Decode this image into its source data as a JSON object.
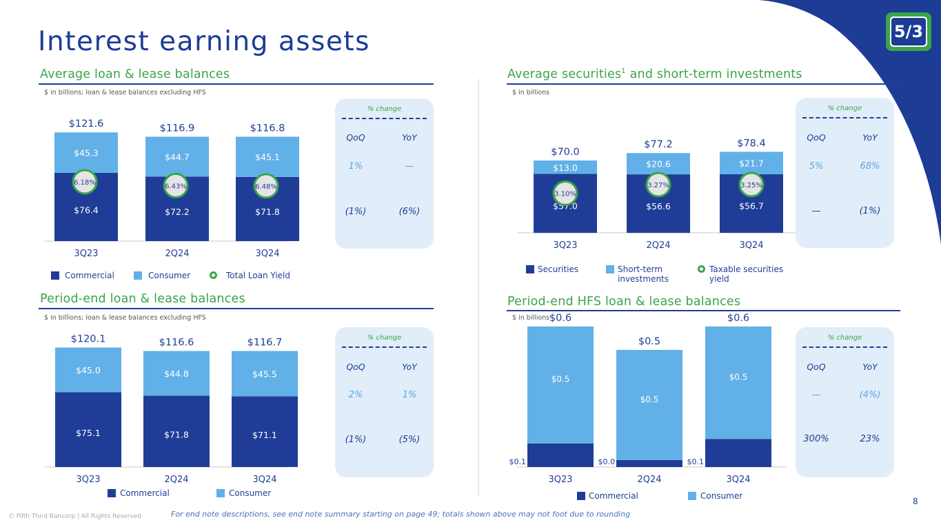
{
  "page": {
    "title": "Interest earning assets",
    "page_number": "8",
    "footer_left": "© Fifth Third Bancorp | All Rights Reserved",
    "footer_note": "For end note descriptions, see end note summary starting on page 49; totals shown above may not foot due to rounding",
    "logo_text": "5/3",
    "colors": {
      "dark_blue": "#1f3d97",
      "light_blue": "#62b0e8",
      "green": "#3aa54a",
      "panel": "#e1edf8"
    }
  },
  "legends": {
    "commercial": "Commercial",
    "consumer": "Consumer",
    "total_loan_yield": "Total Loan Yield",
    "securities": "Securities",
    "short_term": "Short-term investments",
    "taxable_yield": "Taxable securities yield"
  },
  "sections": {
    "avg_loans": {
      "title": "Average loan & lease balances",
      "subnote": "$ in billions; loan & lease balances excluding HFS",
      "change": {
        "header": "% change",
        "qoq_label": "QoQ",
        "yoy_label": "YoY",
        "row1": {
          "qoq": "1%",
          "yoy": "—"
        },
        "row2": {
          "qoq": "(1%)",
          "yoy": "(6%)"
        }
      }
    },
    "avg_securities": {
      "title": "Average securities",
      "title_sup": "1",
      "title_rest": " and short-term investments",
      "subnote": "$ in billions",
      "change": {
        "header": "% change",
        "qoq_label": "QoQ",
        "yoy_label": "YoY",
        "row1": {
          "qoq": "5%",
          "yoy": "68%"
        },
        "row2": {
          "qoq": "—",
          "yoy": "(1%)"
        }
      }
    },
    "pe_loans": {
      "title": "Period-end loan & lease balances",
      "subnote": "$ in billions; loan & lease balances excluding HFS",
      "change": {
        "header": "% change",
        "qoq_label": "QoQ",
        "yoy_label": "YoY",
        "row1": {
          "qoq": "2%",
          "yoy": "1%"
        },
        "row2": {
          "qoq": "(1%)",
          "yoy": "(5%)"
        }
      }
    },
    "pe_hfs": {
      "title": "Period-end HFS loan & lease balances",
      "subnote": "$ in billions",
      "change": {
        "header": "% change",
        "qoq_label": "QoQ",
        "yoy_label": "YoY",
        "row1": {
          "qoq": "—",
          "yoy": "(4%)"
        },
        "row2": {
          "qoq": "300%",
          "yoy": "23%"
        }
      }
    }
  },
  "chart_data": [
    {
      "id": "avg_loans",
      "type": "bar",
      "stacked": true,
      "title": "Average loan & lease balances",
      "categories": [
        "3Q23",
        "2Q24",
        "3Q24"
      ],
      "series": [
        {
          "name": "Commercial",
          "values": [
            76.4,
            72.2,
            71.8
          ],
          "labels": [
            "$76.4",
            "$72.2",
            "$71.8"
          ]
        },
        {
          "name": "Consumer",
          "values": [
            45.3,
            44.7,
            45.1
          ],
          "labels": [
            "$45.3",
            "$44.7",
            "$45.1"
          ]
        }
      ],
      "totals": [
        "$121.6",
        "$116.9",
        "$116.8"
      ],
      "yield_series": {
        "name": "Total Loan Yield",
        "values": [
          "6.18%",
          "6.43%",
          "6.48%"
        ]
      },
      "ylim": [
        0,
        135
      ]
    },
    {
      "id": "avg_securities",
      "type": "bar",
      "stacked": true,
      "title": "Average securities and short-term investments",
      "categories": [
        "3Q23",
        "2Q24",
        "3Q24"
      ],
      "series": [
        {
          "name": "Securities",
          "values": [
            57.0,
            56.6,
            56.7
          ],
          "labels": [
            "$57.0",
            "$56.6",
            "$56.7"
          ]
        },
        {
          "name": "Short-term investments",
          "values": [
            13.0,
            20.6,
            21.7
          ],
          "labels": [
            "$13.0",
            "$20.6",
            "$21.7"
          ]
        }
      ],
      "totals": [
        "$70.0",
        "$77.2",
        "$78.4"
      ],
      "yield_series": {
        "name": "Taxable securities yield",
        "values": [
          "3.10%",
          "3.27%",
          "3.25%"
        ]
      },
      "ylim": [
        0,
        100
      ]
    },
    {
      "id": "pe_loans",
      "type": "bar",
      "stacked": true,
      "title": "Period-end loan & lease balances",
      "categories": [
        "3Q23",
        "2Q24",
        "3Q24"
      ],
      "series": [
        {
          "name": "Commercial",
          "values": [
            75.1,
            71.8,
            71.1
          ],
          "labels": [
            "$75.1",
            "$71.8",
            "$71.1"
          ]
        },
        {
          "name": "Consumer",
          "values": [
            45.0,
            44.8,
            45.5
          ],
          "labels": [
            "$45.0",
            "$44.8",
            "$45.5"
          ]
        }
      ],
      "totals": [
        "$120.1",
        "$116.6",
        "$116.7"
      ],
      "ylim": [
        0,
        135
      ]
    },
    {
      "id": "pe_hfs",
      "type": "bar",
      "stacked": true,
      "title": "Period-end HFS loan & lease balances",
      "categories": [
        "3Q23",
        "2Q24",
        "3Q24"
      ],
      "series": [
        {
          "name": "Commercial",
          "values": [
            0.1,
            0.03,
            0.12
          ],
          "labels": [
            "$0.1",
            "$0.0",
            "$0.1"
          ]
        },
        {
          "name": "Consumer",
          "values": [
            0.5,
            0.47,
            0.48
          ],
          "labels": [
            "$0.5",
            "$0.5",
            "$0.5"
          ]
        }
      ],
      "totals": [
        "$0.6",
        "$0.5",
        "$0.6"
      ],
      "ylim": [
        0,
        0.7
      ]
    }
  ]
}
